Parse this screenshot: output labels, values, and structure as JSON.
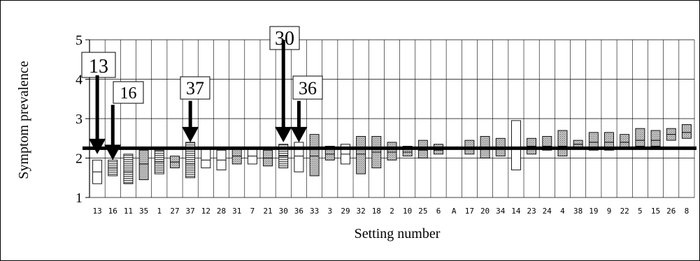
{
  "chart_data": {
    "type": "range-bar",
    "ylabel": "Symptom prevalence",
    "xlabel": "Setting number",
    "ylim": [
      1,
      5
    ],
    "yticks": [
      1,
      2,
      3,
      4,
      5
    ],
    "grid": true,
    "reference_line": 2.25,
    "categories": [
      "13",
      "16",
      "11",
      "35",
      "1",
      "27",
      "37",
      "12",
      "28",
      "31",
      "7",
      "21",
      "30",
      "36",
      "33",
      "3",
      "29",
      "32",
      "18",
      "2",
      "10",
      "25",
      "6",
      "A",
      "17",
      "20",
      "34",
      "14",
      "23",
      "24",
      "4",
      "38",
      "19",
      "9",
      "22",
      "5",
      "15",
      "26",
      "8"
    ],
    "bars": [
      {
        "low": 1.35,
        "mid": 1.65,
        "high": 1.95,
        "fill": "white"
      },
      {
        "low": 1.55,
        "mid": 1.75,
        "high": 1.95,
        "fill": "lines"
      },
      {
        "low": 1.35,
        "mid": 1.65,
        "high": 2.1,
        "fill": "lines"
      },
      {
        "low": 1.45,
        "mid": 1.85,
        "high": 2.2,
        "fill": "dots"
      },
      {
        "low": 1.6,
        "mid": 1.9,
        "high": 2.2,
        "fill": "lines"
      },
      {
        "low": 1.75,
        "mid": 1.9,
        "high": 2.05,
        "fill": "dots"
      },
      {
        "low": 1.5,
        "mid": 1.85,
        "high": 2.4,
        "fill": "lines"
      },
      {
        "low": 1.75,
        "mid": 1.95,
        "high": 2.25,
        "fill": "white"
      },
      {
        "low": 1.7,
        "mid": 1.95,
        "high": 2.2,
        "fill": "white"
      },
      {
        "low": 1.85,
        "mid": 2.05,
        "high": 2.25,
        "fill": "dots"
      },
      {
        "low": 1.85,
        "mid": 2.05,
        "high": 2.25,
        "fill": "white"
      },
      {
        "low": 1.8,
        "mid": 2.0,
        "high": 2.2,
        "fill": "dots"
      },
      {
        "low": 1.75,
        "mid": 2.05,
        "high": 2.35,
        "fill": "lines"
      },
      {
        "low": 1.65,
        "mid": 2.05,
        "high": 2.4,
        "fill": "white"
      },
      {
        "low": 1.55,
        "mid": 2.05,
        "high": 2.6,
        "fill": "dots"
      },
      {
        "low": 1.95,
        "mid": 2.1,
        "high": 2.3,
        "fill": "dots"
      },
      {
        "low": 1.85,
        "mid": 2.1,
        "high": 2.35,
        "fill": "white"
      },
      {
        "low": 1.6,
        "mid": 2.1,
        "high": 2.55,
        "fill": "dots"
      },
      {
        "low": 1.75,
        "mid": 2.15,
        "high": 2.55,
        "fill": "dots"
      },
      {
        "low": 1.95,
        "mid": 2.15,
        "high": 2.4,
        "fill": "dots"
      },
      {
        "low": 2.05,
        "mid": 2.15,
        "high": 2.3,
        "fill": "dots"
      },
      {
        "low": 2.0,
        "mid": 2.2,
        "high": 2.45,
        "fill": "dots"
      },
      {
        "low": 2.1,
        "mid": 2.2,
        "high": 2.35,
        "fill": "dots"
      },
      null,
      {
        "low": 2.1,
        "mid": 2.25,
        "high": 2.45,
        "fill": "dots"
      },
      {
        "low": 2.0,
        "mid": 2.25,
        "high": 2.55,
        "fill": "dots"
      },
      {
        "low": 2.05,
        "mid": 2.25,
        "high": 2.5,
        "fill": "dots"
      },
      {
        "low": 1.7,
        "mid": 2.25,
        "high": 2.95,
        "fill": "white"
      },
      {
        "low": 2.1,
        "mid": 2.3,
        "high": 2.5,
        "fill": "dots"
      },
      {
        "low": 2.2,
        "mid": 2.3,
        "high": 2.55,
        "fill": "dots"
      },
      {
        "low": 2.05,
        "mid": 2.3,
        "high": 2.7,
        "fill": "dots"
      },
      {
        "low": 2.25,
        "mid": 2.35,
        "high": 2.45,
        "fill": "dots"
      },
      {
        "low": 2.2,
        "mid": 2.4,
        "high": 2.65,
        "fill": "dots"
      },
      {
        "low": 2.2,
        "mid": 2.4,
        "high": 2.65,
        "fill": "dots"
      },
      {
        "low": 2.25,
        "mid": 2.4,
        "high": 2.6,
        "fill": "dots"
      },
      {
        "low": 2.3,
        "mid": 2.45,
        "high": 2.75,
        "fill": "dots"
      },
      {
        "low": 2.3,
        "mid": 2.45,
        "high": 2.7,
        "fill": "dots"
      },
      {
        "low": 2.45,
        "mid": 2.6,
        "high": 2.75,
        "fill": "dots"
      },
      {
        "low": 2.5,
        "mid": 2.65,
        "high": 2.85,
        "fill": "dots"
      }
    ],
    "annotations": [
      {
        "label": "13",
        "category": "13",
        "from_y": 4.1,
        "to_y": 2.1
      },
      {
        "label": "16",
        "category": "16",
        "from_y": 3.35,
        "to_y": 1.95
      },
      {
        "label": "37",
        "category": "37",
        "from_y": 3.45,
        "to_y": 2.4
      },
      {
        "label": "30",
        "category": "30",
        "from_y": 5.0,
        "to_y": 2.4
      },
      {
        "label": "36",
        "category": "36",
        "from_y": 3.45,
        "to_y": 2.4
      }
    ]
  }
}
